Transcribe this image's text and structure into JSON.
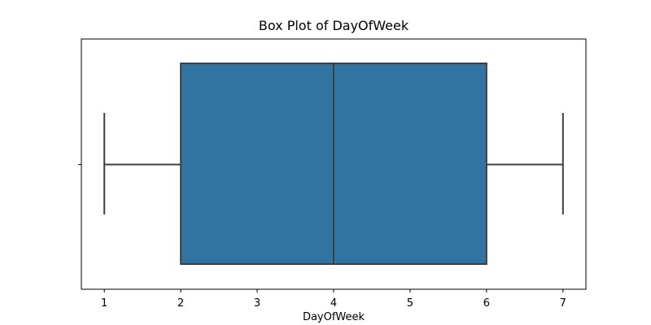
{
  "chart_data": {
    "type": "box",
    "title": "Box Plot of DayOfWeek",
    "xlabel": "DayOfWeek",
    "ylabel": "",
    "orientation": "horizontal",
    "xlim": [
      0.7,
      7.3
    ],
    "x_ticks": [
      1,
      2,
      3,
      4,
      5,
      6,
      7
    ],
    "x_tick_labels": [
      "1",
      "2",
      "3",
      "4",
      "5",
      "6",
      "7"
    ],
    "grid": false,
    "legend": "none",
    "series": [
      {
        "min": 1,
        "q1": 2,
        "median": 4,
        "q3": 6,
        "max": 7
      }
    ],
    "colors": {
      "box_fill": "#3274a1",
      "box_edge": "#3f3f3f",
      "axes_edge": "#000000",
      "background": "#ffffff"
    }
  }
}
